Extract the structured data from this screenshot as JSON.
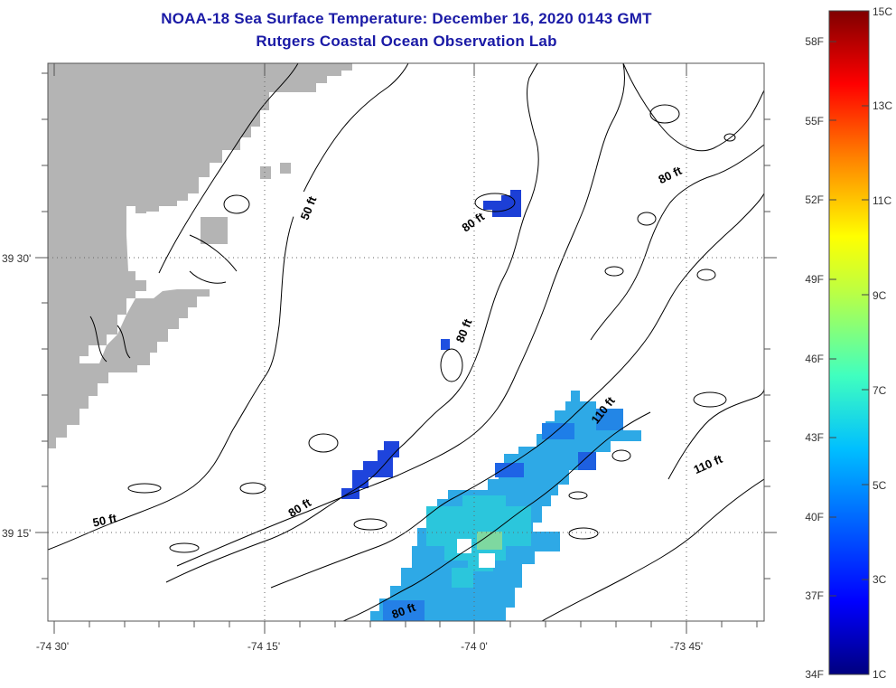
{
  "header": {
    "title": "NOAA-18 Sea Surface Temperature:  December 16, 2020 0143 GMT",
    "subtitle": "Rutgers Coastal Ocean Observation Lab"
  },
  "map": {
    "lat_ticks": [
      "39 30'",
      "39 15'"
    ],
    "lon_ticks": [
      "-74 30'",
      "-74 15'",
      "-74 0'",
      "-73 45'"
    ],
    "contour_labels": [
      "50 ft",
      "80 ft",
      "80 ft",
      "80 ft",
      "80 ft",
      "110 ft",
      "110 ft",
      "50 ft",
      "80 ft"
    ]
  },
  "colorbar": {
    "fahrenheit_labels": [
      "58F",
      "55F",
      "52F",
      "49F",
      "46F",
      "43F",
      "40F",
      "37F",
      "34F"
    ],
    "celsius_labels": [
      "15C",
      "13C",
      "11C",
      "9C",
      "7C",
      "5C",
      "3C",
      "1C"
    ],
    "min_c": 1,
    "max_c": 15
  },
  "colors": {
    "title": "#1a1aa6",
    "land": "#b4b4b4",
    "frame": "#555555"
  }
}
